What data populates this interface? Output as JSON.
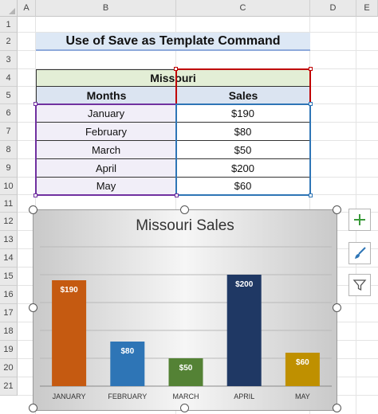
{
  "sheet": {
    "columns": [
      "A",
      "B",
      "C",
      "D",
      "E"
    ],
    "rows": [
      "1",
      "2",
      "3",
      "4",
      "5",
      "6",
      "7",
      "8",
      "9",
      "10",
      "11",
      "12",
      "13",
      "14",
      "15",
      "16",
      "17",
      "18",
      "19",
      "20",
      "21"
    ]
  },
  "title": "Use of Save as Template Command",
  "table": {
    "state": "Missouri",
    "headers": [
      "Months",
      "Sales"
    ],
    "rows": [
      {
        "month": "January",
        "sales": "$190"
      },
      {
        "month": "February",
        "sales": "$80"
      },
      {
        "month": "March",
        "sales": "$50"
      },
      {
        "month": "April",
        "sales": "$200"
      },
      {
        "month": "May",
        "sales": "$60"
      }
    ]
  },
  "chart_data": {
    "type": "bar",
    "title": "Missouri Sales",
    "categories": [
      "JANUARY",
      "FEBRUARY",
      "MARCH",
      "APRIL",
      "MAY"
    ],
    "values": [
      190,
      80,
      50,
      200,
      60
    ],
    "data_labels": [
      "$190",
      "$80",
      "$50",
      "$200",
      "$60"
    ],
    "colors": [
      "#c55a11",
      "#2e75b6",
      "#548235",
      "#1f3864",
      "#bf9000"
    ],
    "ylim": [
      0,
      250
    ],
    "grid": true,
    "legend": "none"
  },
  "side_buttons": {
    "add_icon": "plus-icon",
    "style_icon": "brush-icon",
    "filter_icon": "filter-icon"
  },
  "colors": {
    "title_fill": "#dde8f5",
    "state_fill": "#e3eed6",
    "months_fill": "#f1eef8",
    "selection_months": "#7030a0",
    "selection_sales": "#2e75b6",
    "selection_header": "#c00000"
  }
}
